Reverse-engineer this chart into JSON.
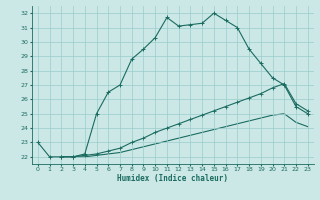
{
  "title": "",
  "xlabel": "Humidex (Indice chaleur)",
  "xlim": [
    -0.5,
    23.5
  ],
  "ylim": [
    21.5,
    32.5
  ],
  "xticks": [
    0,
    1,
    2,
    3,
    4,
    5,
    6,
    7,
    8,
    9,
    10,
    11,
    12,
    13,
    14,
    15,
    16,
    17,
    18,
    19,
    20,
    21,
    22,
    23
  ],
  "yticks": [
    22,
    23,
    24,
    25,
    26,
    27,
    28,
    29,
    30,
    31,
    32
  ],
  "bg_color": "#cce8e6",
  "grid_color": "#99cccc",
  "line_color": "#1a6b60",
  "curve1_x": [
    0,
    1,
    2,
    3,
    4,
    5,
    6,
    7,
    8,
    9,
    10,
    11,
    12,
    13,
    14,
    15,
    16,
    17,
    18,
    19,
    20,
    21,
    22,
    23
  ],
  "curve1_y": [
    23.0,
    22.0,
    22.0,
    22.0,
    22.2,
    25.0,
    26.5,
    27.0,
    28.8,
    29.5,
    30.3,
    31.7,
    31.1,
    31.2,
    31.3,
    32.0,
    31.5,
    31.0,
    29.5,
    28.5,
    27.5,
    27.0,
    25.5,
    25.0
  ],
  "curve2_x": [
    2,
    3,
    4,
    5,
    6,
    7,
    8,
    9,
    10,
    11,
    12,
    13,
    14,
    15,
    16,
    17,
    18,
    19,
    20,
    21,
    22,
    23
  ],
  "curve2_y": [
    22.0,
    22.0,
    22.1,
    22.2,
    22.4,
    22.6,
    23.0,
    23.3,
    23.7,
    24.0,
    24.3,
    24.6,
    24.9,
    25.2,
    25.5,
    25.8,
    26.1,
    26.4,
    26.8,
    27.1,
    25.7,
    25.2
  ],
  "curve3_x": [
    2,
    3,
    4,
    5,
    6,
    7,
    8,
    9,
    10,
    11,
    12,
    13,
    14,
    15,
    16,
    17,
    18,
    19,
    20,
    21,
    22,
    23
  ],
  "curve3_y": [
    22.0,
    22.0,
    22.0,
    22.1,
    22.2,
    22.3,
    22.5,
    22.7,
    22.9,
    23.1,
    23.3,
    23.5,
    23.7,
    23.9,
    24.1,
    24.3,
    24.5,
    24.7,
    24.9,
    25.0,
    24.4,
    24.1
  ]
}
